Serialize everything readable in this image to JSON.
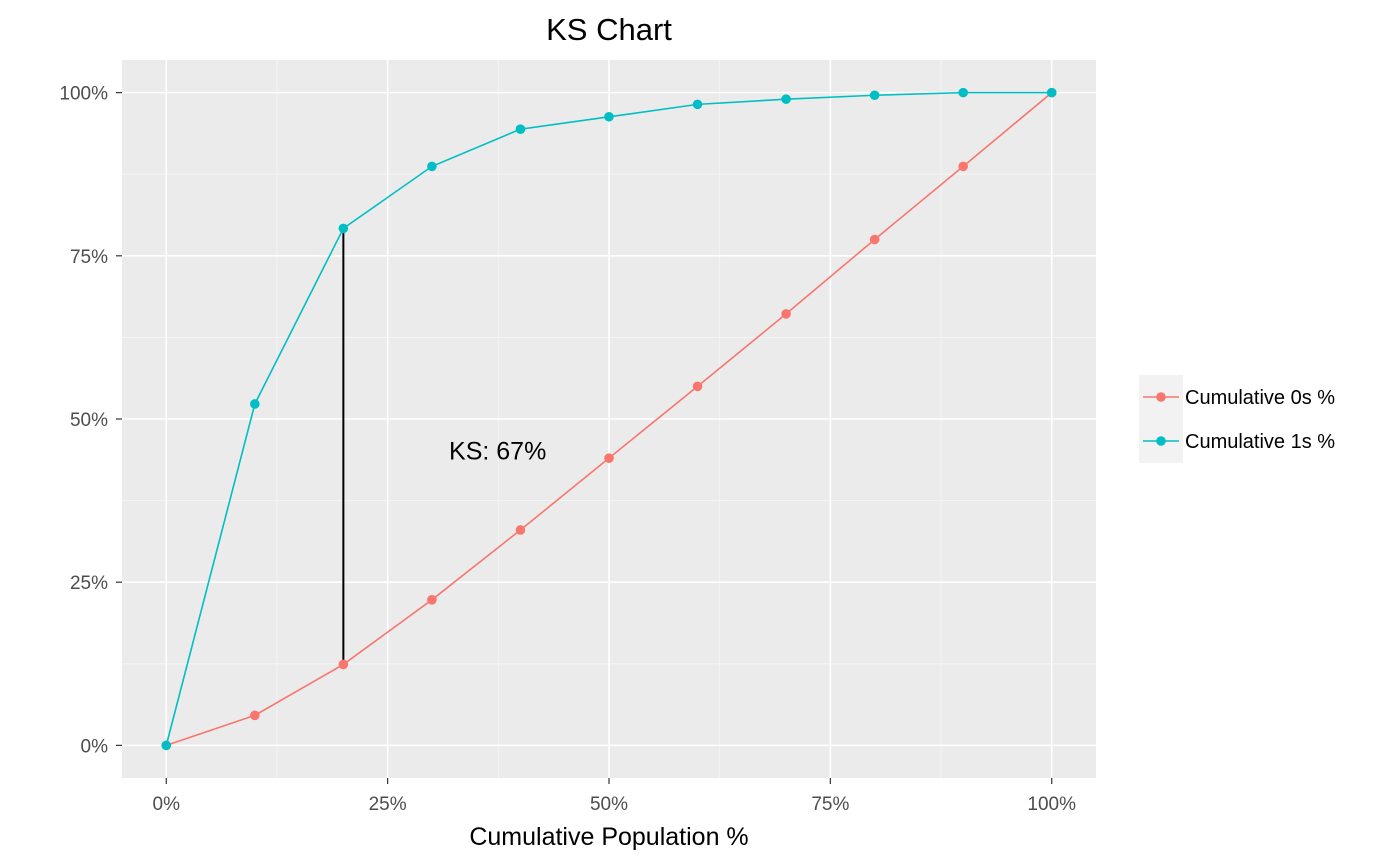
{
  "chart_data": {
    "type": "line",
    "title": "KS Chart",
    "xlabel": "Cumulative Population %",
    "ylabel": "",
    "xlim": [
      -0.05,
      1.05
    ],
    "ylim": [
      -0.05,
      1.05
    ],
    "x_ticks": [
      {
        "value": 0,
        "label": "0%"
      },
      {
        "value": 0.25,
        "label": "25%"
      },
      {
        "value": 0.5,
        "label": "50%"
      },
      {
        "value": 0.75,
        "label": "75%"
      },
      {
        "value": 1,
        "label": "100%"
      }
    ],
    "y_ticks": [
      {
        "value": 0,
        "label": "0%"
      },
      {
        "value": 0.25,
        "label": "25%"
      },
      {
        "value": 0.5,
        "label": "50%"
      },
      {
        "value": 0.75,
        "label": "75%"
      },
      {
        "value": 1,
        "label": "100%"
      }
    ],
    "x": [
      0,
      0.1,
      0.2,
      0.3,
      0.4,
      0.5,
      0.6,
      0.7,
      0.8,
      0.9,
      1.0
    ],
    "series": [
      {
        "name": "Cumulative 0s %",
        "color": "#F8766D",
        "values": [
          0,
          0.046,
          0.124,
          0.223,
          0.33,
          0.44,
          0.55,
          0.661,
          0.775,
          0.887,
          1.0
        ]
      },
      {
        "name": "Cumulative 1s %",
        "color": "#00BFC4",
        "values": [
          0,
          0.523,
          0.792,
          0.887,
          0.944,
          0.963,
          0.982,
          0.99,
          0.996,
          1.0,
          1.0
        ]
      }
    ],
    "ks_line": {
      "x": 0.2,
      "y_from": 0.124,
      "y_to": 0.792
    },
    "annotation": {
      "text": "KS: 67%",
      "x": 0.36,
      "y": 0.45
    },
    "grid": true,
    "legend_position": "right"
  }
}
